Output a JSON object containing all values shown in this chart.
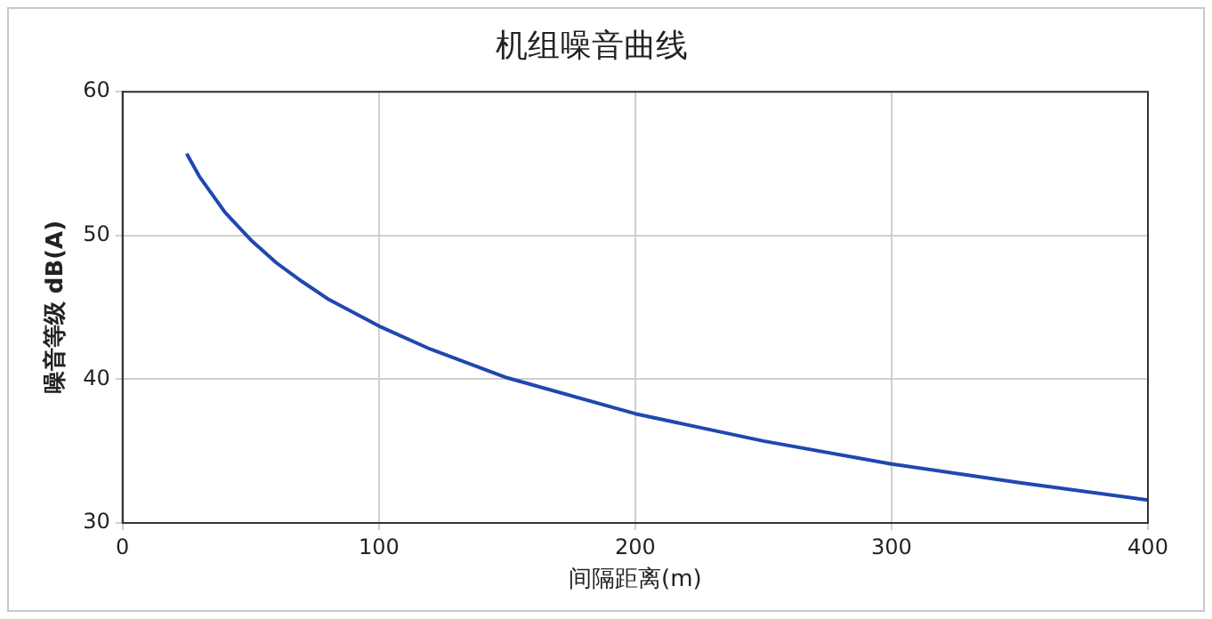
{
  "chart_data": {
    "type": "line",
    "title": "机组噪音曲线",
    "xlabel": "间隔距离(m)",
    "ylabel": "噪音等级 dB(A)",
    "x": [
      25,
      30,
      40,
      50,
      60,
      70,
      80,
      100,
      120,
      150,
      200,
      250,
      300,
      350,
      400
    ],
    "series": [
      {
        "color": "#1f48b0",
        "values": [
          55.7,
          54.1,
          51.6,
          49.7,
          48.1,
          46.8,
          45.6,
          43.7,
          42.1,
          40.1,
          37.6,
          35.7,
          34.1,
          32.8,
          31.6
        ]
      }
    ],
    "xlim": [
      0,
      400
    ],
    "xticks": [
      0,
      100,
      200,
      300,
      400
    ],
    "ylim": [
      30,
      60
    ],
    "yticks": [
      30,
      40,
      50,
      60
    ],
    "grid": true,
    "legend": false,
    "marker": "none",
    "line_style": "solid"
  }
}
